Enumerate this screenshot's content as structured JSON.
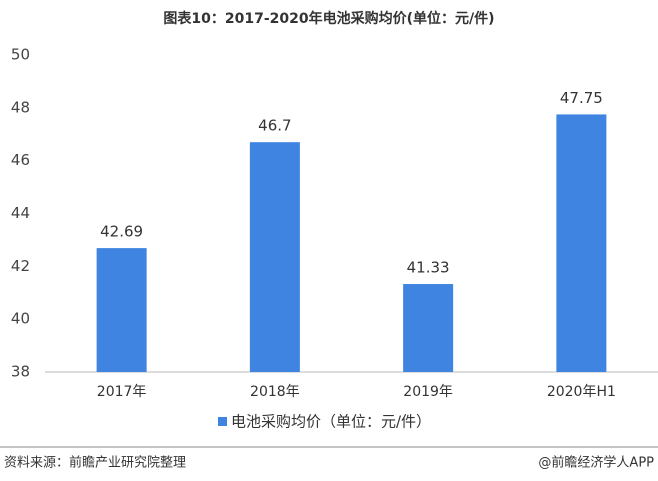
{
  "chart_data": {
    "type": "bar",
    "title": "图表10：2017-2020年电池采购均价(单位：元/件)",
    "categories": [
      "2017年",
      "2018年",
      "2019年",
      "2020年H1"
    ],
    "series": [
      {
        "name": "电池采购均价（单位：元/件）",
        "color": "#3e84e0",
        "values": [
          42.69,
          46.7,
          41.33,
          47.75
        ]
      }
    ],
    "ylim": [
      38,
      50
    ],
    "yticks": [
      38,
      40,
      42,
      44,
      46,
      48,
      50
    ],
    "grid": false,
    "legend": "bottom",
    "source": "资料来源：前瞻产业研究院整理",
    "credit": "@前瞻经济学人APP"
  }
}
